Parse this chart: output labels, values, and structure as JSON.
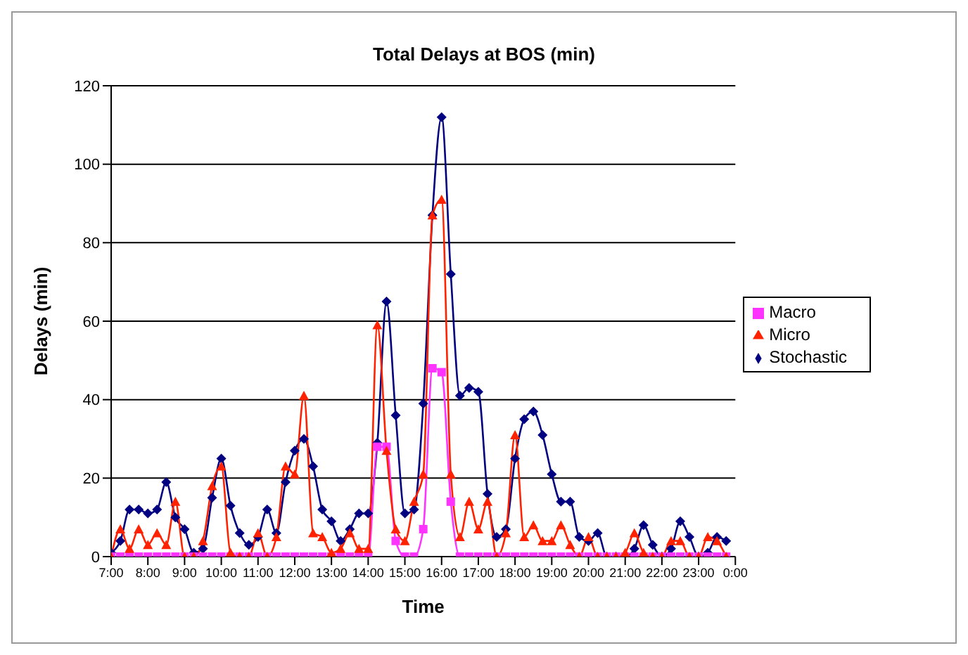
{
  "chart_data": {
    "type": "line",
    "title": "Total Delays at BOS (min)",
    "xlabel": "Time",
    "ylabel": "Delays (min)",
    "x": [
      7,
      7.25,
      7.5,
      7.75,
      8,
      8.25,
      8.5,
      8.75,
      9,
      9.25,
      9.5,
      9.75,
      10,
      10.25,
      10.5,
      10.75,
      11,
      11.25,
      11.5,
      11.75,
      12,
      12.25,
      12.5,
      12.75,
      13,
      13.25,
      13.5,
      13.75,
      14,
      14.25,
      14.5,
      14.75,
      15,
      15.25,
      15.5,
      15.75,
      16,
      16.25,
      16.5,
      16.75,
      17,
      17.25,
      17.5,
      17.75,
      18,
      18.25,
      18.5,
      18.75,
      19,
      19.25,
      19.5,
      19.75,
      20,
      20.25,
      20.5,
      20.75,
      21,
      21.25,
      21.5,
      21.75,
      22,
      22.25,
      22.5,
      22.75,
      23,
      23.25,
      23.5,
      23.75
    ],
    "series": [
      {
        "name": "Stochastic",
        "color": "#000080",
        "marker": "diamond",
        "values": [
          1,
          4,
          12,
          12,
          11,
          12,
          19,
          10,
          7,
          1,
          2,
          15,
          25,
          13,
          6,
          3,
          5,
          12,
          6,
          19,
          27,
          30,
          23,
          12,
          9,
          4,
          7,
          11,
          11,
          29,
          65,
          36,
          11,
          12,
          39,
          87,
          112,
          72,
          41,
          43,
          42,
          16,
          5,
          7,
          25,
          35,
          37,
          31,
          21,
          14,
          14,
          5,
          4,
          6,
          0,
          0,
          0,
          2,
          8,
          3,
          0,
          2,
          9,
          5,
          0,
          1,
          5,
          4
        ]
      },
      {
        "name": "Macro",
        "color": "#ff33ff",
        "marker": "square",
        "values": [
          0,
          0,
          0,
          0,
          0,
          0,
          0,
          0,
          0,
          0,
          0,
          0,
          0,
          0,
          0,
          0,
          0,
          0,
          0,
          0,
          0,
          0,
          0,
          0,
          0,
          0,
          0,
          0,
          0,
          28,
          28,
          4,
          0,
          0,
          7,
          48,
          47,
          14,
          0,
          0,
          0,
          0,
          0,
          0,
          0,
          0,
          0,
          0,
          0,
          0,
          0,
          0,
          0,
          0,
          0,
          0,
          0,
          0,
          0,
          0,
          0,
          0,
          0,
          0,
          0,
          0,
          0,
          0
        ]
      },
      {
        "name": "Micro",
        "color": "#ff2200",
        "marker": "triangle",
        "values": [
          0,
          7,
          2,
          7,
          3,
          6,
          3,
          14,
          0,
          0,
          4,
          18,
          23,
          1,
          0,
          0,
          6,
          0,
          5,
          23,
          21,
          41,
          6,
          5,
          1,
          2,
          6,
          2,
          2,
          59,
          27,
          7,
          4,
          14,
          21,
          87,
          91,
          21,
          5,
          14,
          7,
          14,
          0,
          6,
          31,
          5,
          8,
          4,
          4,
          8,
          3,
          0,
          5,
          0,
          0,
          0,
          1,
          6,
          1,
          0,
          0,
          4,
          4,
          0,
          0,
          5,
          4,
          0
        ]
      }
    ],
    "xlim": [
      7,
      24
    ],
    "xticks": [
      {
        "value": 7,
        "label": "7:00"
      },
      {
        "value": 8,
        "label": "8:00"
      },
      {
        "value": 9,
        "label": "9:00"
      },
      {
        "value": 10,
        "label": "10:00"
      },
      {
        "value": 11,
        "label": "11:00"
      },
      {
        "value": 12,
        "label": "12:00"
      },
      {
        "value": 13,
        "label": "13:00"
      },
      {
        "value": 14,
        "label": "14:00"
      },
      {
        "value": 15,
        "label": "15:00"
      },
      {
        "value": 16,
        "label": "16:00"
      },
      {
        "value": 17,
        "label": "17:00"
      },
      {
        "value": 18,
        "label": "18:00"
      },
      {
        "value": 19,
        "label": "19:00"
      },
      {
        "value": 20,
        "label": "20:00"
      },
      {
        "value": 21,
        "label": "21:00"
      },
      {
        "value": 22,
        "label": "22:00"
      },
      {
        "value": 23,
        "label": "23:00"
      },
      {
        "value": 24,
        "label": "0:00"
      }
    ],
    "ylim": [
      0,
      120
    ],
    "yticks": [
      0,
      20,
      40,
      60,
      80,
      100,
      120
    ],
    "grid": "y",
    "legend": "right",
    "line_style": "solid"
  }
}
